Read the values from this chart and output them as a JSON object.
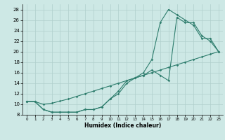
{
  "xlabel": "Humidex (Indice chaleur)",
  "bg_color": "#cde8e5",
  "line_color": "#2e7d6d",
  "grid_color": "#b0cfcc",
  "xlim": [
    -0.5,
    23.5
  ],
  "ylim": [
    8,
    29
  ],
  "xticks": [
    0,
    1,
    2,
    3,
    4,
    5,
    6,
    7,
    8,
    9,
    10,
    11,
    12,
    13,
    14,
    15,
    16,
    17,
    18,
    19,
    20,
    21,
    22,
    23
  ],
  "yticks": [
    8,
    10,
    12,
    14,
    16,
    18,
    20,
    22,
    24,
    26,
    28
  ],
  "line_straight_x": [
    0,
    1,
    2,
    3,
    4,
    5,
    6,
    7,
    8,
    9,
    10,
    11,
    12,
    13,
    14,
    15,
    16,
    17,
    18,
    19,
    20,
    21,
    22,
    23
  ],
  "line_straight_y": [
    10.5,
    10.5,
    10.0,
    10.2,
    10.6,
    11.0,
    11.5,
    12.0,
    12.5,
    13.0,
    13.5,
    14.0,
    14.5,
    15.0,
    15.5,
    16.0,
    16.5,
    17.0,
    17.5,
    18.0,
    18.5,
    19.0,
    19.5,
    20.0
  ],
  "line_upper_x": [
    0,
    1,
    2,
    3,
    4,
    5,
    6,
    7,
    8,
    9,
    10,
    11,
    12,
    13,
    14,
    15,
    16,
    17,
    18,
    19,
    20,
    21,
    22,
    23
  ],
  "line_upper_y": [
    10.5,
    10.5,
    9.0,
    8.5,
    8.5,
    8.5,
    8.5,
    9.0,
    9.0,
    9.5,
    11.0,
    12.5,
    14.5,
    15.0,
    16.0,
    18.5,
    25.5,
    28.0,
    27.0,
    26.0,
    25.0,
    22.5,
    22.5,
    20.0
  ],
  "line_lower_x": [
    0,
    1,
    2,
    3,
    4,
    5,
    6,
    7,
    8,
    9,
    10,
    11,
    12,
    13,
    14,
    15,
    16,
    17,
    18,
    19,
    20,
    21,
    22,
    23
  ],
  "line_lower_y": [
    10.5,
    10.5,
    9.0,
    8.5,
    8.5,
    8.5,
    8.5,
    9.0,
    9.0,
    9.5,
    11.0,
    12.0,
    14.0,
    15.0,
    15.5,
    16.5,
    15.5,
    14.5,
    26.5,
    25.5,
    25.5,
    23.0,
    22.0,
    20.0
  ]
}
